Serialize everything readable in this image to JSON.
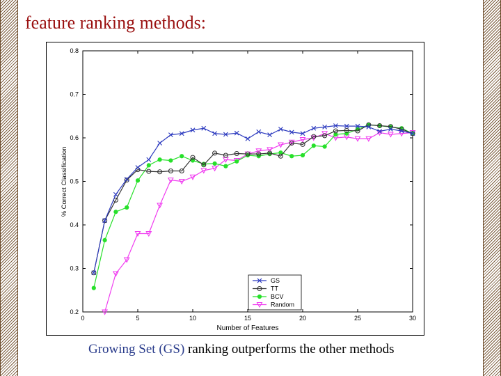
{
  "slide": {
    "title": "feature ranking methods:",
    "caption_highlight": "Growing Set (GS)",
    "caption_rest": " ranking outperforms the other methods"
  },
  "chart_data": {
    "type": "line",
    "title": "",
    "xlabel": "Number of Features",
    "ylabel": "% Correct Classification",
    "xlim": [
      0,
      30
    ],
    "ylim": [
      0.2,
      0.8
    ],
    "xticks": [
      0,
      5,
      10,
      15,
      20,
      25,
      30
    ],
    "yticks": [
      0.2,
      0.3,
      0.4,
      0.5,
      0.6,
      0.7,
      0.8
    ],
    "grid": false,
    "legend_position": "lower-right",
    "series": [
      {
        "name": "GS",
        "color": "#2d3bbf",
        "marker": "x",
        "x": [
          1,
          2,
          3,
          4,
          5,
          6,
          7,
          8,
          9,
          10,
          11,
          12,
          13,
          14,
          15,
          16,
          17,
          18,
          19,
          20,
          21,
          22,
          23,
          24,
          25,
          26,
          27,
          28,
          29,
          30
        ],
        "y": [
          0.29,
          0.41,
          0.47,
          0.505,
          0.532,
          0.55,
          0.588,
          0.607,
          0.61,
          0.618,
          0.622,
          0.61,
          0.608,
          0.611,
          0.598,
          0.614,
          0.607,
          0.62,
          0.613,
          0.61,
          0.622,
          0.625,
          0.628,
          0.627,
          0.627,
          0.625,
          0.615,
          0.62,
          0.616,
          0.61
        ]
      },
      {
        "name": "TT",
        "color": "#333333",
        "marker": "o",
        "x": [
          1,
          2,
          3,
          4,
          5,
          6,
          7,
          8,
          9,
          10,
          11,
          12,
          13,
          14,
          15,
          16,
          17,
          18,
          19,
          20,
          21,
          22,
          23,
          24,
          25,
          26,
          27,
          28,
          29,
          30
        ],
        "y": [
          0.29,
          0.41,
          0.457,
          0.503,
          0.527,
          0.523,
          0.522,
          0.524,
          0.524,
          0.555,
          0.538,
          0.565,
          0.56,
          0.564,
          0.563,
          0.563,
          0.565,
          0.558,
          0.588,
          0.585,
          0.603,
          0.605,
          0.616,
          0.617,
          0.616,
          0.63,
          0.628,
          0.626,
          0.62,
          0.61
        ]
      },
      {
        "name": "BCV",
        "color": "#27e02a",
        "marker": "*",
        "x": [
          1,
          2,
          3,
          4,
          5,
          6,
          7,
          8,
          9,
          10,
          11,
          12,
          13,
          14,
          15,
          16,
          17,
          18,
          19,
          20,
          21,
          22,
          23,
          24,
          25,
          26,
          27,
          28,
          29,
          30
        ],
        "y": [
          0.255,
          0.365,
          0.43,
          0.44,
          0.502,
          0.537,
          0.55,
          0.548,
          0.558,
          0.548,
          0.54,
          0.541,
          0.535,
          0.546,
          0.56,
          0.558,
          0.563,
          0.566,
          0.558,
          0.56,
          0.582,
          0.58,
          0.608,
          0.61,
          0.62,
          0.63,
          0.628,
          0.625,
          0.622,
          0.61
        ]
      },
      {
        "name": "Random",
        "color": "#f03cf0",
        "marker": "v",
        "x": [
          2,
          3,
          4,
          5,
          6,
          7,
          8,
          9,
          10,
          11,
          12,
          13,
          14,
          15,
          16,
          17,
          18,
          19,
          20,
          21,
          22,
          23,
          24,
          25,
          26,
          27,
          28,
          29,
          30
        ],
        "y": [
          0.2,
          0.288,
          0.32,
          0.38,
          0.38,
          0.445,
          0.503,
          0.5,
          0.51,
          0.525,
          0.53,
          0.55,
          0.548,
          0.563,
          0.57,
          0.573,
          0.584,
          0.59,
          0.596,
          0.6,
          0.61,
          0.6,
          0.602,
          0.598,
          0.598,
          0.612,
          0.608,
          0.61,
          0.612
        ]
      }
    ]
  }
}
